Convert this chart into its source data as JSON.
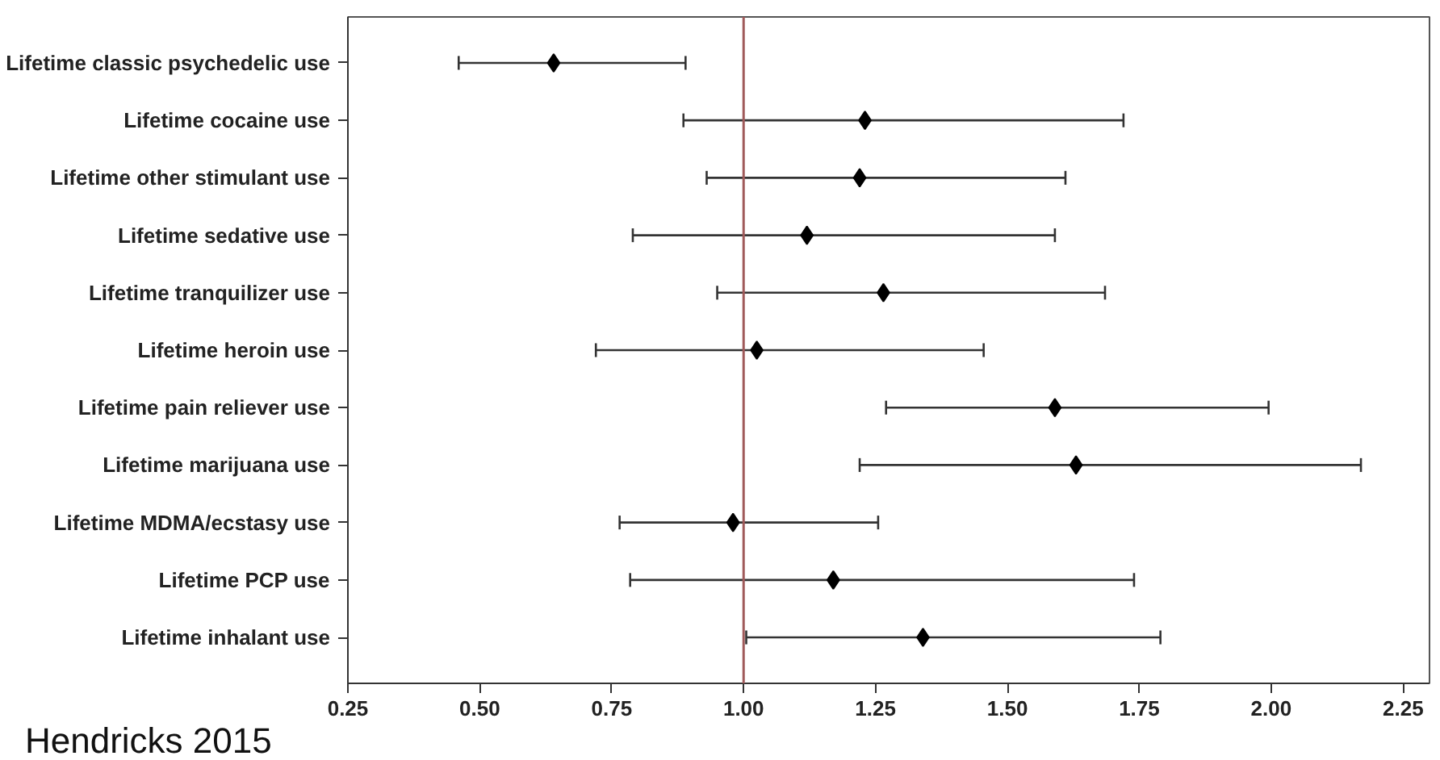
{
  "chart_data": {
    "type": "scatter",
    "orientation": "horizontal",
    "categories": [
      "Lifetime classic psychedelic use",
      "Lifetime cocaine use",
      "Lifetime other stimulant use",
      "Lifetime sedative use",
      "Lifetime tranquilizer use",
      "Lifetime heroin use",
      "Lifetime pain reliever use",
      "Lifetime marijuana use",
      "Lifetime MDMA/ecstasy use",
      "Lifetime PCP use",
      "Lifetime inhalant use"
    ],
    "values": [
      0.64,
      1.23,
      1.22,
      1.12,
      1.265,
      1.025,
      1.59,
      1.63,
      0.98,
      1.17,
      1.34
    ],
    "errors": [
      [
        0.46,
        0.89
      ],
      [
        0.886,
        1.72
      ],
      [
        0.93,
        1.61
      ],
      [
        0.79,
        1.59
      ],
      [
        0.95,
        1.685
      ],
      [
        0.72,
        1.455
      ],
      [
        1.27,
        1.995
      ],
      [
        1.22,
        2.17
      ],
      [
        0.765,
        1.255
      ],
      [
        0.785,
        1.74
      ],
      [
        1.005,
        1.79
      ]
    ],
    "color": "#000000",
    "marker": "diamond",
    "xlim": [
      0.25,
      2.3
    ],
    "xticks": [
      {
        "value": 0.25,
        "label": "0.25"
      },
      {
        "value": 0.5,
        "label": "0.50"
      },
      {
        "value": 0.75,
        "label": "0.75"
      },
      {
        "value": 1.0,
        "label": "1.00"
      },
      {
        "value": 1.25,
        "label": "1.25"
      },
      {
        "value": 1.5,
        "label": "1.50"
      },
      {
        "value": 1.75,
        "label": "1.75"
      },
      {
        "value": 2.0,
        "label": "2.00"
      },
      {
        "value": 2.25,
        "label": "2.25"
      }
    ],
    "ref_lines": [
      {
        "axis": "x",
        "value": 1.0,
        "color": "#a05a5a"
      }
    ],
    "annotations": [
      "Hendricks 2015"
    ],
    "grid": false
  }
}
